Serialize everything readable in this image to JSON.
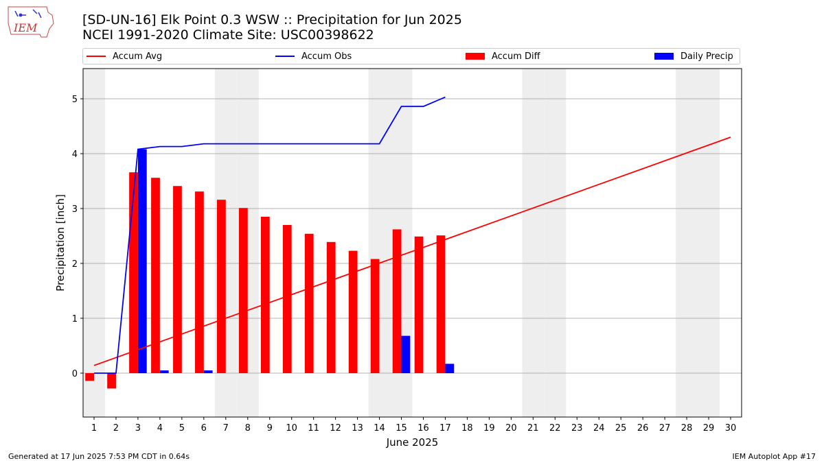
{
  "header": {
    "title_line1": "[SD-UN-16] Elk Point 0.3 WSW :: Precipitation for Jun 2025",
    "title_line2": "NCEI 1991-2020 Climate Site: USC00398622",
    "logo_text": "IEM"
  },
  "footer": {
    "left": "Generated at 17 Jun 2025 7:53 PM CDT in 0.64s",
    "right": "IEM Autoplot App #17"
  },
  "colors": {
    "avg": "#ff0000",
    "obs": "#0000ff",
    "diff": "#ff0000",
    "daily": "#0000ff",
    "weekend_shade": "#eeeeee",
    "grid": "#b0b0b0"
  },
  "chart_data": {
    "type": "bar",
    "title": "[SD-UN-16] Elk Point 0.3 WSW :: Precipitation for Jun 2025",
    "subtitle": "NCEI 1991-2020 Climate Site: USC00398622",
    "xlabel": "June 2025",
    "ylabel": "Precipitation [inch]",
    "x": [
      1,
      2,
      3,
      4,
      5,
      6,
      7,
      8,
      9,
      10,
      11,
      12,
      13,
      14,
      15,
      16,
      17,
      18,
      19,
      20,
      21,
      22,
      23,
      24,
      25,
      26,
      27,
      28,
      29,
      30
    ],
    "xlim": [
      0.5,
      30.5
    ],
    "ylim": [
      -0.8,
      5.55
    ],
    "yticks": [
      0,
      1,
      2,
      3,
      4,
      5
    ],
    "grid": "horizontal",
    "legend_placement": "top",
    "weekend_days": [
      1,
      7,
      8,
      14,
      15,
      21,
      22,
      28,
      29
    ],
    "series": [
      {
        "name": "Accum Avg",
        "type": "line",
        "x": [
          1,
          30
        ],
        "values": [
          0.14,
          4.3
        ]
      },
      {
        "name": "Accum Obs",
        "type": "line",
        "x": [
          1,
          2,
          3,
          4,
          5,
          6,
          7,
          8,
          9,
          10,
          11,
          12,
          13,
          14,
          15,
          16,
          17
        ],
        "values": [
          0.0,
          0.0,
          4.08,
          4.13,
          4.13,
          4.18,
          4.18,
          4.18,
          4.18,
          4.18,
          4.18,
          4.18,
          4.18,
          4.18,
          4.86,
          4.86,
          5.03
        ]
      },
      {
        "name": "Accum Diff",
        "type": "bar",
        "x": [
          1,
          2,
          3,
          4,
          5,
          6,
          7,
          8,
          9,
          10,
          11,
          12,
          13,
          14,
          15,
          16,
          17
        ],
        "values": [
          -0.14,
          -0.28,
          3.66,
          3.56,
          3.41,
          3.31,
          3.16,
          3.01,
          2.85,
          2.7,
          2.54,
          2.39,
          2.23,
          2.08,
          2.62,
          2.49,
          2.51
        ]
      },
      {
        "name": "Daily Precip",
        "type": "bar",
        "x": [
          1,
          2,
          3,
          4,
          5,
          6,
          7,
          8,
          9,
          10,
          11,
          12,
          13,
          14,
          15,
          16,
          17
        ],
        "values": [
          0.0,
          0.0,
          4.08,
          0.05,
          0.0,
          0.05,
          0.0,
          0.0,
          0.0,
          0.0,
          0.0,
          0.0,
          0.0,
          0.0,
          0.68,
          0.0,
          0.17
        ]
      }
    ]
  }
}
